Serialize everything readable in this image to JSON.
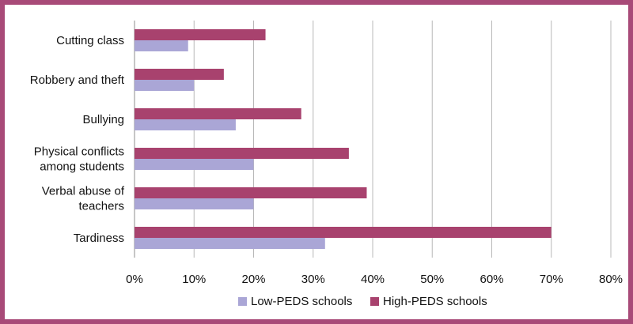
{
  "chart_data": {
    "type": "bar",
    "orientation": "horizontal",
    "categories": [
      [
        "Cutting class"
      ],
      [
        "Robbery and theft"
      ],
      [
        "Bullying"
      ],
      [
        "Physical conflicts",
        "among students"
      ],
      [
        "Verbal abuse of",
        "teachers"
      ],
      [
        "Tardiness"
      ]
    ],
    "series": [
      {
        "name": "Low-PEDS schools",
        "color": "#aaa6d6",
        "values": [
          9,
          10,
          17,
          20,
          20,
          32
        ]
      },
      {
        "name": "High-PEDS schools",
        "color": "#a8426e",
        "values": [
          22,
          15,
          28,
          36,
          39,
          70
        ]
      }
    ],
    "xlim": [
      0,
      80
    ],
    "xticks": [
      0,
      10,
      20,
      30,
      40,
      50,
      60,
      70,
      80
    ],
    "tick_suffix": "%",
    "grid": true,
    "legend": "bottom",
    "frame_color": "#a84a78"
  }
}
